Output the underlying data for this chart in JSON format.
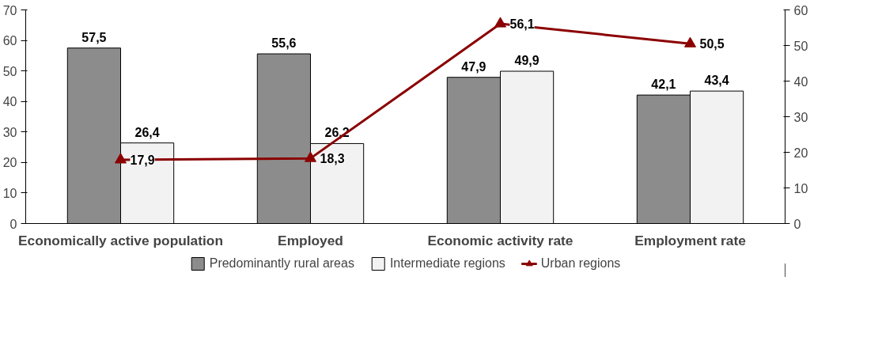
{
  "chart_data": {
    "type": "bar",
    "categories": [
      "Economically active population",
      "Employed",
      "Economic activity rate",
      "Employment rate"
    ],
    "series": [
      {
        "name": "Predominantly rural areas",
        "color": "#8c8c8c",
        "values": [
          57.5,
          55.6,
          47.9,
          42.1
        ],
        "value_labels": [
          "57,5",
          "55,6",
          "47,9",
          "42,1"
        ]
      },
      {
        "name": "Intermediate regions",
        "color": "#f2f2f2",
        "values": [
          26.4,
          26.2,
          49.9,
          43.4
        ],
        "value_labels": [
          "26,4",
          "26,2",
          "49,9",
          "43,4"
        ]
      },
      {
        "name": "Urban regions",
        "type": "line",
        "axis": "y2",
        "color": "#8b0000",
        "marker": "triangle",
        "values": [
          17.9,
          18.3,
          56.1,
          50.5
        ],
        "value_labels": [
          "17,9",
          "18,3",
          "56,1",
          "50,5"
        ]
      }
    ],
    "ylim": [
      0,
      70
    ],
    "yticks": [
      0,
      10,
      20,
      30,
      40,
      50,
      60,
      70
    ],
    "y2lim": [
      0,
      60
    ],
    "y2ticks": [
      0,
      10,
      20,
      30,
      40,
      50,
      60
    ],
    "legend": "bottom",
    "grid": false
  }
}
